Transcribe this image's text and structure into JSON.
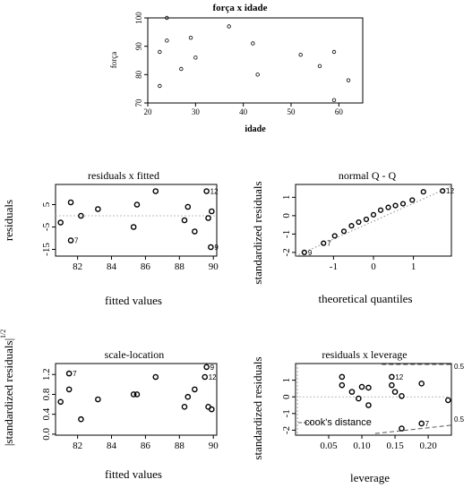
{
  "chart_data": [
    {
      "id": "forca",
      "type": "scatter",
      "title": "força x idade",
      "xlabel": "idade",
      "ylabel": "força",
      "xlim": [
        20,
        65
      ],
      "ylim": [
        70,
        100
      ],
      "xticks": [
        20,
        30,
        40,
        50,
        60
      ],
      "xtick_labels": [
        "20",
        "30",
        "40",
        "50",
        "60"
      ],
      "yticks": [
        70,
        80,
        90,
        100
      ],
      "ytick_labels": [
        "70",
        "80",
        "90",
        "100"
      ],
      "points": [
        {
          "x": 24,
          "y": 100
        },
        {
          "x": 24,
          "y": 92
        },
        {
          "x": 22.5,
          "y": 88
        },
        {
          "x": 22.5,
          "y": 76
        },
        {
          "x": 27,
          "y": 82
        },
        {
          "x": 29,
          "y": 93
        },
        {
          "x": 30,
          "y": 86
        },
        {
          "x": 37,
          "y": 97
        },
        {
          "x": 42,
          "y": 91
        },
        {
          "x": 43,
          "y": 80
        },
        {
          "x": 52,
          "y": 87
        },
        {
          "x": 56,
          "y": 83
        },
        {
          "x": 59,
          "y": 88
        },
        {
          "x": 59,
          "y": 71
        },
        {
          "x": 62,
          "y": 78
        }
      ]
    },
    {
      "id": "resfit",
      "type": "scatter",
      "title": "residuals x fitted",
      "xlabel": "fitted values",
      "ylabel": "residuals",
      "xlim": [
        80.7,
        90.2
      ],
      "ylim": [
        -18,
        14
      ],
      "xticks": [
        82,
        84,
        86,
        88,
        90
      ],
      "xtick_labels": [
        "82",
        "84",
        "86",
        "88",
        "90"
      ],
      "yticks": [
        -15,
        -5,
        5
      ],
      "ytick_labels": [
        "-15",
        "-5",
        "5"
      ],
      "hline": 0,
      "points": [
        {
          "x": 81,
          "y": -3
        },
        {
          "x": 81.6,
          "y": 6
        },
        {
          "x": 82.2,
          "y": 0
        },
        {
          "x": 83.2,
          "y": 3
        },
        {
          "x": 85.3,
          "y": -5
        },
        {
          "x": 85.5,
          "y": 5
        },
        {
          "x": 86.6,
          "y": 11
        },
        {
          "x": 88.3,
          "y": -2
        },
        {
          "x": 88.5,
          "y": 4
        },
        {
          "x": 88.9,
          "y": -7
        },
        {
          "x": 89.6,
          "y": 11
        },
        {
          "x": 89.7,
          "y": -1
        },
        {
          "x": 89.9,
          "y": 2
        },
        {
          "x": 89.85,
          "y": -14
        },
        {
          "x": 81.6,
          "y": -11
        }
      ],
      "labels": [
        {
          "text": "7",
          "x": 81.6,
          "y": -11
        },
        {
          "text": "12",
          "x": 89.6,
          "y": 11
        },
        {
          "text": "9",
          "x": 89.85,
          "y": -14
        }
      ]
    },
    {
      "id": "qq",
      "type": "scatter",
      "title": "normal Q - Q",
      "xlabel": "theoretical quantiles",
      "ylabel": "standardized residuals",
      "xlim": [
        -1.95,
        1.95
      ],
      "ylim": [
        -2.2,
        1.7
      ],
      "xticks": [
        -1,
        0,
        1
      ],
      "xtick_labels": [
        "-1",
        "0",
        "1"
      ],
      "yticks": [
        -2,
        -1,
        0,
        1
      ],
      "ytick_labels": [
        "-2",
        "-1",
        "0",
        "1"
      ],
      "ref_line": [
        [
          -1.95,
          -2.2
        ],
        [
          1.95,
          1.6
        ]
      ],
      "points": [
        {
          "x": -1.73,
          "y": -2.0
        },
        {
          "x": -1.25,
          "y": -1.5
        },
        {
          "x": -0.97,
          "y": -1.1
        },
        {
          "x": -0.74,
          "y": -0.85
        },
        {
          "x": -0.55,
          "y": -0.55
        },
        {
          "x": -0.37,
          "y": -0.35
        },
        {
          "x": -0.18,
          "y": -0.2
        },
        {
          "x": 0,
          "y": 0.05
        },
        {
          "x": 0.18,
          "y": 0.3
        },
        {
          "x": 0.37,
          "y": 0.45
        },
        {
          "x": 0.55,
          "y": 0.55
        },
        {
          "x": 0.74,
          "y": 0.65
        },
        {
          "x": 0.97,
          "y": 0.85
        },
        {
          "x": 1.25,
          "y": 1.3
        },
        {
          "x": 1.73,
          "y": 1.35
        }
      ],
      "labels": [
        {
          "text": "9",
          "x": -1.73,
          "y": -2.0
        },
        {
          "text": "7",
          "x": -1.25,
          "y": -1.5
        },
        {
          "text": "12",
          "x": 1.73,
          "y": 1.35
        }
      ]
    },
    {
      "id": "scaleloc",
      "type": "scatter",
      "title": "scale-location",
      "xlabel": "fitted values",
      "ylabel": "|standardized residuals|",
      "ylabel_exponent": "1/2",
      "xlim": [
        80.7,
        90.2
      ],
      "ylim": [
        -0.02,
        1.42
      ],
      "xticks": [
        82,
        84,
        86,
        88,
        90
      ],
      "xtick_labels": [
        "82",
        "84",
        "86",
        "88",
        "90"
      ],
      "yticks": [
        0.0,
        0.4,
        0.8,
        1.2
      ],
      "ytick_labels": [
        "0.0",
        "0.4",
        "0.8",
        "1.2"
      ],
      "points": [
        {
          "x": 81,
          "y": 0.65
        },
        {
          "x": 81.5,
          "y": 1.22
        },
        {
          "x": 81.5,
          "y": 0.9
        },
        {
          "x": 82.2,
          "y": 0.3
        },
        {
          "x": 83.2,
          "y": 0.7
        },
        {
          "x": 85.3,
          "y": 0.8
        },
        {
          "x": 85.5,
          "y": 0.8
        },
        {
          "x": 86.6,
          "y": 1.15
        },
        {
          "x": 88.3,
          "y": 0.55
        },
        {
          "x": 88.5,
          "y": 0.75
        },
        {
          "x": 88.9,
          "y": 0.9
        },
        {
          "x": 89.5,
          "y": 1.15
        },
        {
          "x": 89.6,
          "y": 1.35
        },
        {
          "x": 89.7,
          "y": 0.55
        },
        {
          "x": 89.9,
          "y": 0.5
        }
      ],
      "labels": [
        {
          "text": "7",
          "x": 81.5,
          "y": 1.22
        },
        {
          "text": "12",
          "x": 89.5,
          "y": 1.15
        },
        {
          "text": "9",
          "x": 89.6,
          "y": 1.35
        }
      ]
    },
    {
      "id": "lev",
      "type": "scatter",
      "title": "residuals x leverage",
      "xlabel": "leverage",
      "ylabel": "standardized residuals",
      "xlim": [
        0,
        0.235
      ],
      "ylim": [
        -2.3,
        2.0
      ],
      "xticks": [
        0.05,
        0.1,
        0.15,
        0.2
      ],
      "xtick_labels": [
        "0.05",
        "0.10",
        "0.15",
        "0.20"
      ],
      "yticks": [
        -2,
        -1,
        0,
        1
      ],
      "ytick_labels": [
        "-2",
        "-1",
        "0",
        "1"
      ],
      "hline": 0,
      "cook_legend": "cook's distance",
      "cook_labels": [
        "0.5",
        "0.5"
      ],
      "points": [
        {
          "x": 0.07,
          "y": 1.2
        },
        {
          "x": 0.07,
          "y": 0.7
        },
        {
          "x": 0.085,
          "y": 0.3
        },
        {
          "x": 0.095,
          "y": -0.1
        },
        {
          "x": 0.1,
          "y": 0.6
        },
        {
          "x": 0.11,
          "y": 0.55
        },
        {
          "x": 0.11,
          "y": -0.5
        },
        {
          "x": 0.145,
          "y": 1.2
        },
        {
          "x": 0.145,
          "y": 0.7
        },
        {
          "x": 0.15,
          "y": 0.3
        },
        {
          "x": 0.16,
          "y": 0.05
        },
        {
          "x": 0.16,
          "y": -1.9
        },
        {
          "x": 0.19,
          "y": 0.8
        },
        {
          "x": 0.23,
          "y": -0.2
        },
        {
          "x": 0.19,
          "y": -1.6
        }
      ],
      "labels": [
        {
          "text": "12",
          "x": 0.145,
          "y": 1.2
        },
        {
          "text": "7",
          "x": 0.19,
          "y": -1.6
        }
      ]
    }
  ]
}
